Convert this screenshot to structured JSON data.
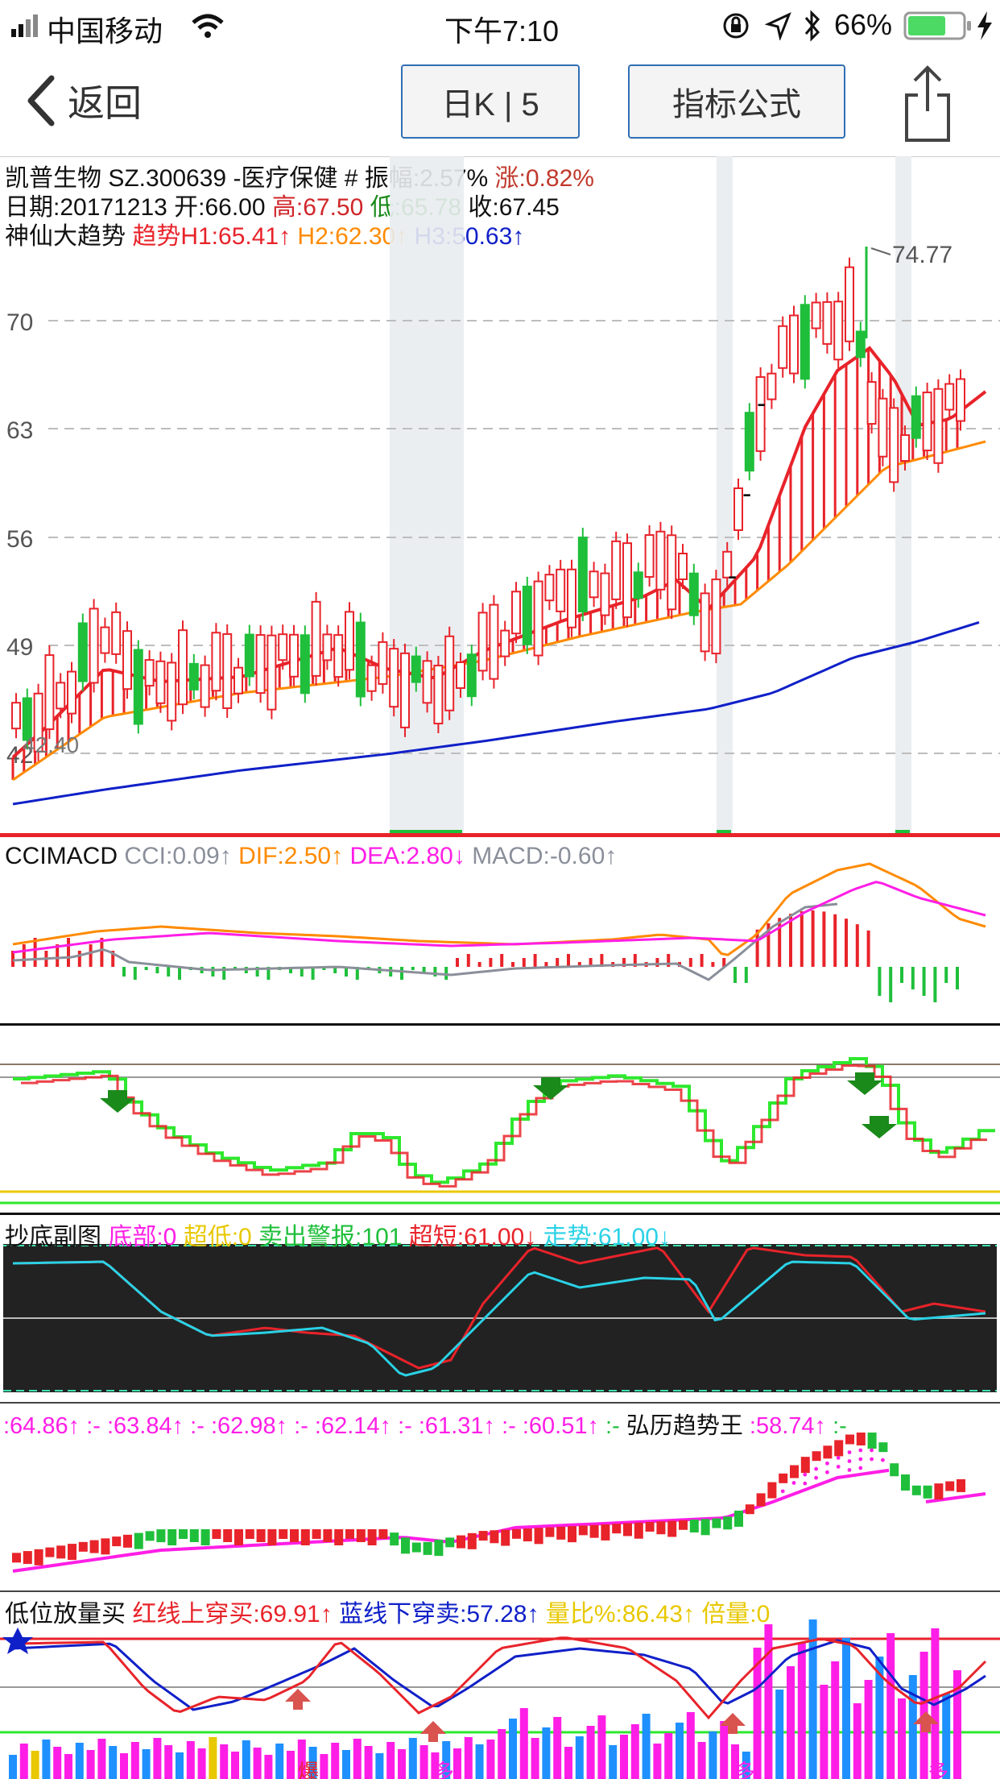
{
  "status_bar": {
    "carrier": "中国移动",
    "time": "下午7:10",
    "battery": "66%"
  },
  "nav": {
    "back_label": "返回",
    "period_label": "日K | 5",
    "formula_label": "指标公式"
  },
  "stock": {
    "line1_name": "凯普生物 SZ.300639 -医疗保健",
    "line1_amp": " # 振幅:2.57%",
    "line1_chg": " 涨:0.82%",
    "date": "日期:20171213",
    "open": " 开:66.00",
    "high": " 高:67.50",
    "low": " 低:65.78",
    "close": " 收:67.45",
    "ind_name": "神仙大趋势",
    "h1": " 趋势H1:65.41↑",
    "h2": " H2:62.30↑",
    "h3": " H3:50.63↑"
  },
  "main_chart": {
    "y_ticks": [
      "70",
      "63",
      "56",
      "49",
      "42"
    ],
    "max_label": "74.77",
    "min_label": "42.40",
    "dash_mark": "-"
  },
  "macd": {
    "name": "CCIMACD",
    "cci": " CCI:0.09↑",
    "dif": " DIF:2.50↑",
    "dea": " DEA:2.80↓",
    "macd": " MACD:-0.60↑"
  },
  "chaodi": {
    "name": "抄底副图",
    "bottom": " 底部:0",
    "oversold": " 超低:0",
    "sell_alert": " 卖出警报:101",
    "short": " 超短:61.00↓",
    "trend": " 走势:61.00↓"
  },
  "hongli": {
    "v1": ":64.86↑",
    "v2": " :- :63.84↑",
    "v3": " :- :62.98↑",
    "v4": " :- :62.14↑",
    "v5": " :- :61.31↑",
    "v6": " :- :60.51↑",
    "v7": " :-",
    "name": " 弘历趋势王",
    "v8": " :58.74↑",
    "v9": " :-"
  },
  "volume": {
    "name": "低位放量买",
    "red_cross": " 红线上穿买:69.91↑",
    "blue_cross": " 蓝线下穿卖:57.28↑",
    "ratio": " 量比%:86.43↑",
    "multiple": " 倍量:0",
    "mark_bao": "爆",
    "mark_duo": "多"
  },
  "colors": {
    "up": "#e8232a",
    "down": "#1fbf3b",
    "orange": "#ff8a00",
    "blue": "#1020c8",
    "magenta": "#ff1ee6",
    "cyan": "#2ad2e6",
    "gray": "#8a8f9a",
    "green_dark": "#1a8a1a",
    "yellow": "#e8c800"
  }
}
